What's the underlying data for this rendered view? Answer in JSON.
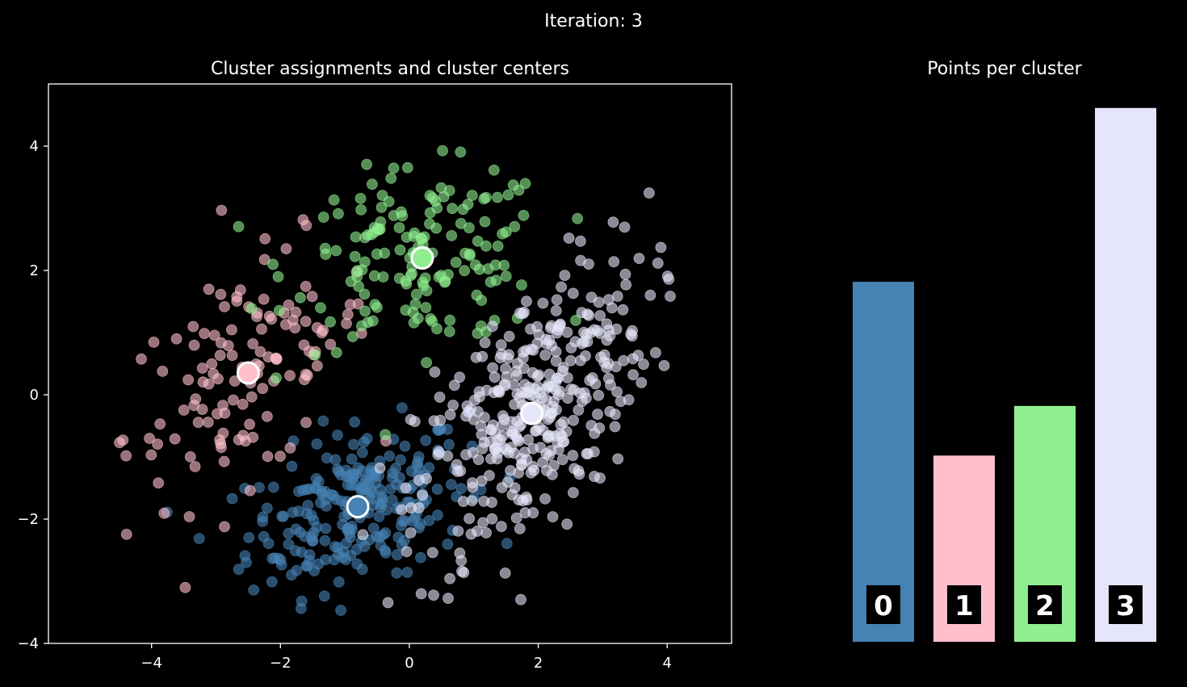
{
  "suptitle": "Iteration: 3",
  "chart_data": [
    {
      "type": "scatter",
      "title": "Cluster assignments and cluster centers",
      "xlabel": "",
      "ylabel": "",
      "xlim": [
        -5.6,
        5.0
      ],
      "ylim": [
        -4.0,
        5.0
      ],
      "xticks": [
        -4,
        -2,
        0,
        2,
        4
      ],
      "yticks": [
        -4,
        -2,
        0,
        2,
        4
      ],
      "xtick_labels": [
        "−4",
        "−2",
        "0",
        "2",
        "4"
      ],
      "ytick_labels": [
        "−4",
        "−2",
        "0",
        "2",
        "4"
      ],
      "grid": false,
      "clusters": [
        {
          "id": 0,
          "color": "#4682b4",
          "center": [
            -0.8,
            -1.8
          ],
          "spread": [
            0.85,
            0.65
          ],
          "corr": 0.35,
          "count": 290
        },
        {
          "id": 1,
          "color": "#ffc0cb",
          "center": [
            -2.5,
            0.35
          ],
          "spread": [
            0.95,
            1.0
          ],
          "corr": 0.5,
          "count": 150
        },
        {
          "id": 2,
          "color": "#90ee90",
          "center": [
            0.2,
            2.2
          ],
          "spread": [
            1.0,
            0.7
          ],
          "corr": 0.1,
          "count": 190
        },
        {
          "id": 3,
          "color": "#e6e6fa",
          "center": [
            1.9,
            -0.3
          ],
          "spread": [
            0.9,
            1.25
          ],
          "corr": 0.6,
          "count": 430
        }
      ]
    },
    {
      "type": "bar",
      "title": "Points per cluster",
      "categories": [
        "0",
        "1",
        "2",
        "3"
      ],
      "values": [
        290,
        150,
        190,
        430
      ],
      "ylim": [
        0,
        450
      ],
      "colors": [
        "#4682b4",
        "#ffc0cb",
        "#90ee90",
        "#e6e6fa"
      ],
      "axis_visible": false
    }
  ]
}
